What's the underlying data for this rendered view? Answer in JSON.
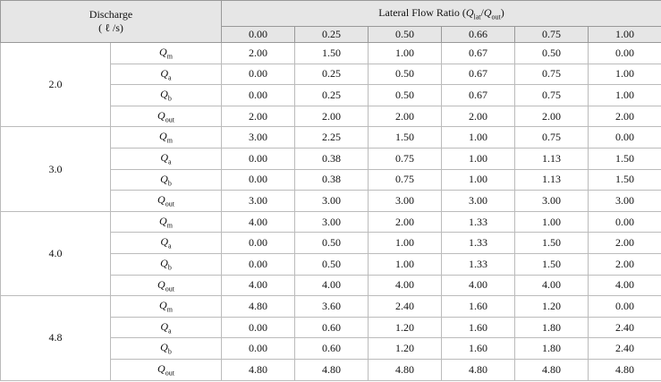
{
  "header": {
    "discharge": "Discharge",
    "discharge_unit": "( ℓ /s)",
    "ratio_title": {
      "prefix": "Lateral Flow Ratio (",
      "num_base": "Q",
      "num_sub": "lat",
      "slash": "/",
      "den_base": "Q",
      "den_sub": "out",
      "suffix": ")"
    },
    "ratios": [
      "0.00",
      "0.25",
      "0.50",
      "0.66",
      "0.75",
      "1.00"
    ]
  },
  "row_labels": [
    {
      "base": "Q",
      "sub": "m"
    },
    {
      "base": "Q",
      "sub": "a"
    },
    {
      "base": "Q",
      "sub": "b"
    },
    {
      "base": "Q",
      "sub": "out"
    }
  ],
  "groups": [
    {
      "discharge": "2.0",
      "rows": [
        [
          "2.00",
          "1.50",
          "1.00",
          "0.67",
          "0.50",
          "0.00"
        ],
        [
          "0.00",
          "0.25",
          "0.50",
          "0.67",
          "0.75",
          "1.00"
        ],
        [
          "0.00",
          "0.25",
          "0.50",
          "0.67",
          "0.75",
          "1.00"
        ],
        [
          "2.00",
          "2.00",
          "2.00",
          "2.00",
          "2.00",
          "2.00"
        ]
      ]
    },
    {
      "discharge": "3.0",
      "rows": [
        [
          "3.00",
          "2.25",
          "1.50",
          "1.00",
          "0.75",
          "0.00"
        ],
        [
          "0.00",
          "0.38",
          "0.75",
          "1.00",
          "1.13",
          "1.50"
        ],
        [
          "0.00",
          "0.38",
          "0.75",
          "1.00",
          "1.13",
          "1.50"
        ],
        [
          "3.00",
          "3.00",
          "3.00",
          "3.00",
          "3.00",
          "3.00"
        ]
      ]
    },
    {
      "discharge": "4.0",
      "rows": [
        [
          "4.00",
          "3.00",
          "2.00",
          "1.33",
          "1.00",
          "0.00"
        ],
        [
          "0.00",
          "0.50",
          "1.00",
          "1.33",
          "1.50",
          "2.00"
        ],
        [
          "0.00",
          "0.50",
          "1.00",
          "1.33",
          "1.50",
          "2.00"
        ],
        [
          "4.00",
          "4.00",
          "4.00",
          "4.00",
          "4.00",
          "4.00"
        ]
      ]
    },
    {
      "discharge": "4.8",
      "rows": [
        [
          "4.80",
          "3.60",
          "2.40",
          "1.60",
          "1.20",
          "0.00"
        ],
        [
          "0.00",
          "0.60",
          "1.20",
          "1.60",
          "1.80",
          "2.40"
        ],
        [
          "0.00",
          "0.60",
          "1.20",
          "1.60",
          "1.80",
          "2.40"
        ],
        [
          "4.80",
          "4.80",
          "4.80",
          "4.80",
          "4.80",
          "4.80"
        ]
      ]
    }
  ]
}
